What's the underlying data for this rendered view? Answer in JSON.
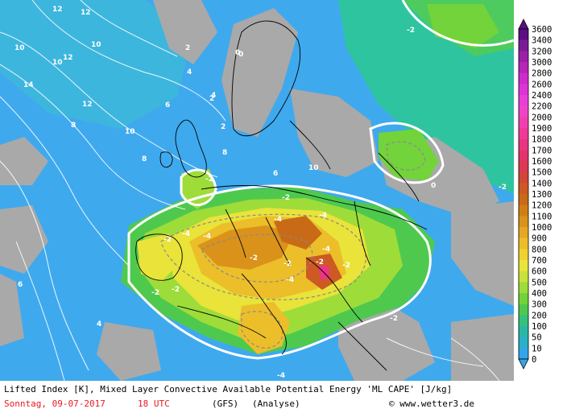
{
  "map": {
    "title": "Lifted Index [K], Mixed Layer Convective Available Potential Energy 'ML CAPE' [J/kg]",
    "date": "Sonntag, 09-07-2017",
    "time": "18 UTC",
    "model": "(GFS)",
    "kind": "(Analyse)",
    "credit": "© www.wetter3.de"
  },
  "legend": {
    "levels": [
      "3600",
      "3400",
      "3200",
      "3000",
      "2800",
      "2600",
      "2400",
      "2200",
      "2000",
      "1900",
      "1800",
      "1700",
      "1600",
      "1500",
      "1400",
      "1300",
      "1200",
      "1100",
      "1000",
      "900",
      "800",
      "700",
      "600",
      "500",
      "400",
      "300",
      "200",
      "100",
      "50",
      "10",
      "0"
    ],
    "colors": [
      "#5b0f82",
      "#7a1a96",
      "#9a20a8",
      "#b624b8",
      "#cc2ccc",
      "#dd34d6",
      "#e93fd8",
      "#f043c8",
      "#f23fb0",
      "#ef3a98",
      "#ea3582",
      "#e3336a",
      "#dc3a52",
      "#d34638",
      "#cc5a22",
      "#c86a16",
      "#d07e14",
      "#da921a",
      "#e4a822",
      "#ecbe2a",
      "#efd230",
      "#e9e33a",
      "#c9e23a",
      "#9edc3a",
      "#73d33a",
      "#4ec94e",
      "#36c07c",
      "#2ab8a4",
      "#2ab0c8",
      "#35a4ea"
    ]
  },
  "labels": {
    "li": [
      "12",
      "12",
      "10",
      "10",
      "10",
      "12",
      "14",
      "12",
      "10",
      "8",
      "2",
      "4",
      "6",
      "8",
      "6",
      "4",
      "2",
      "0",
      "-2",
      "-4",
      "-2",
      "-2",
      "-2",
      "-4",
      "-4",
      "-2",
      "-4",
      "-2",
      "-2",
      "-4",
      "-2",
      "-4",
      "-2",
      "-2",
      "-2",
      "-4",
      "0",
      "2",
      "4",
      "6",
      "8",
      "10",
      "-2",
      "0"
    ]
  }
}
